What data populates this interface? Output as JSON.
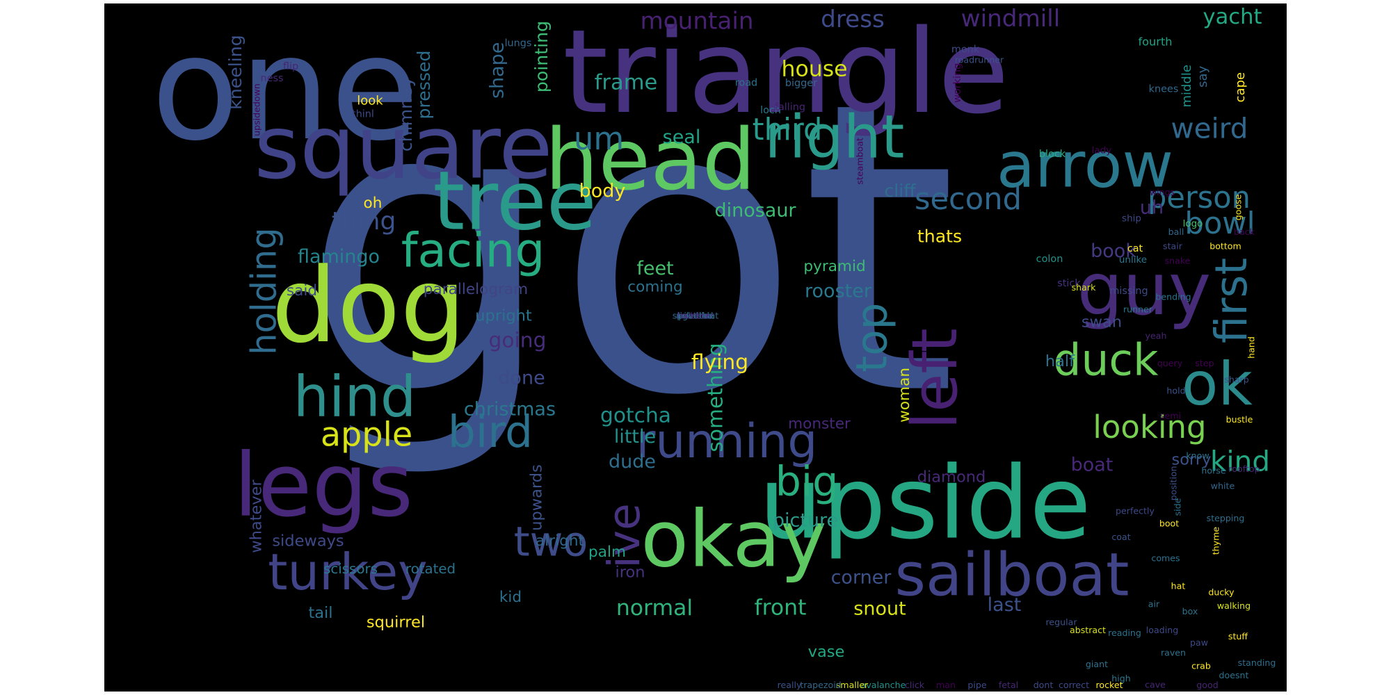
{
  "word_cloud": {
    "words": [
      {
        "text": "got",
        "color": "#3b518b"
      },
      {
        "text": "one",
        "color": "#3b518b"
      },
      {
        "text": "triangle",
        "color": "#46327e"
      },
      {
        "text": "square",
        "color": "#404387"
      },
      {
        "text": "head",
        "color": "#5ec962"
      },
      {
        "text": "tree",
        "color": "#2a9a8a"
      },
      {
        "text": "dog",
        "color": "#a0da39"
      },
      {
        "text": "legs",
        "color": "#482878"
      },
      {
        "text": "upside",
        "color": "#26a784"
      },
      {
        "text": "okay",
        "color": "#5ec962"
      },
      {
        "text": "sailboat",
        "color": "#414487"
      },
      {
        "text": "guy",
        "color": "#472c7a"
      },
      {
        "text": "arrow",
        "color": "#2a788e"
      },
      {
        "text": "right",
        "color": "#2a9a8a"
      },
      {
        "text": "ok",
        "color": "#2a8a8c"
      },
      {
        "text": "left",
        "color": "#482173"
      },
      {
        "text": "first",
        "color": "#2c728e"
      },
      {
        "text": "hind",
        "color": "#2e8f8c"
      },
      {
        "text": "running",
        "color": "#3e4a89"
      },
      {
        "text": "turkey",
        "color": "#414487"
      },
      {
        "text": "bird",
        "color": "#2c718e"
      },
      {
        "text": "duck",
        "color": "#6ccd5a"
      },
      {
        "text": "facing",
        "color": "#26ad81"
      },
      {
        "text": "holding",
        "color": "#2f6c8e"
      },
      {
        "text": "apple",
        "color": "#d8e219"
      },
      {
        "text": "ive",
        "color": "#46327e"
      },
      {
        "text": "two",
        "color": "#3e4c8a"
      },
      {
        "text": "big",
        "color": "#2ab07f"
      },
      {
        "text": "looking",
        "color": "#7ad151"
      },
      {
        "text": "kind",
        "color": "#23a983"
      },
      {
        "text": "second",
        "color": "#31688e"
      },
      {
        "text": "person",
        "color": "#2c738e"
      },
      {
        "text": "bowl",
        "color": "#2c728e"
      },
      {
        "text": "thing",
        "color": "#3b528b"
      },
      {
        "text": "top",
        "color": "#2a788e"
      },
      {
        "text": "um",
        "color": "#2c728e"
      },
      {
        "text": "third",
        "color": "#2a9a8a"
      },
      {
        "text": "weird",
        "color": "#31688e"
      },
      {
        "text": "mountain",
        "color": "#482173"
      },
      {
        "text": "dress",
        "color": "#3e4a89"
      },
      {
        "text": "windmill",
        "color": "#482878"
      },
      {
        "text": "yacht",
        "color": "#23a983"
      },
      {
        "text": "house",
        "color": "#d8e219"
      },
      {
        "text": "frame",
        "color": "#2a9a8a"
      },
      {
        "text": "shape",
        "color": "#31688e"
      },
      {
        "text": "pointing",
        "color": "#3dbc74"
      },
      {
        "text": "pressed",
        "color": "#2e6e8e"
      },
      {
        "text": "chimney",
        "color": "#3b528b"
      },
      {
        "text": "kneeling",
        "color": "#3b528b"
      },
      {
        "text": "seal",
        "color": "#20a386"
      },
      {
        "text": "body",
        "color": "#fde725"
      },
      {
        "text": "oh",
        "color": "#fde725"
      },
      {
        "text": "dinosaur",
        "color": "#3dbc74"
      },
      {
        "text": "cliff",
        "color": "#2e6e8e"
      },
      {
        "text": "book",
        "color": "#443983"
      },
      {
        "text": "uh",
        "color": "#472c7a"
      },
      {
        "text": "thats",
        "color": "#fde725"
      },
      {
        "text": "flamingo",
        "color": "#25848e"
      },
      {
        "text": "said",
        "color": "#3e4a89"
      },
      {
        "text": "parallelogram",
        "color": "#414487"
      },
      {
        "text": "pyramid",
        "color": "#3dbc74"
      },
      {
        "text": "rooster",
        "color": "#2a788e"
      },
      {
        "text": "feet",
        "color": "#46c06f"
      },
      {
        "text": "coming",
        "color": "#2c728e"
      },
      {
        "text": "something",
        "color": "#26ad81"
      },
      {
        "text": "going",
        "color": "#472c7a"
      },
      {
        "text": "flying",
        "color": "#fde725"
      },
      {
        "text": "done",
        "color": "#3e4a89"
      },
      {
        "text": "christmas",
        "color": "#2a788e"
      },
      {
        "text": "upright",
        "color": "#2c728e"
      },
      {
        "text": "swan",
        "color": "#3e4a89"
      },
      {
        "text": "half",
        "color": "#2c728e"
      },
      {
        "text": "woman",
        "color": "#d8e219"
      },
      {
        "text": "little",
        "color": "#21918c"
      },
      {
        "text": "dude",
        "color": "#2e6e8e"
      },
      {
        "text": "gotcha",
        "color": "#21918c"
      },
      {
        "text": "picture",
        "color": "#2a9a8a"
      },
      {
        "text": "diamond",
        "color": "#482878"
      },
      {
        "text": "boat",
        "color": "#482878"
      },
      {
        "text": "sorry",
        "color": "#3b528b"
      },
      {
        "text": "sideways",
        "color": "#3e4a89"
      },
      {
        "text": "upwards",
        "color": "#3b528b"
      },
      {
        "text": "alright",
        "color": "#31688e"
      },
      {
        "text": "palm",
        "color": "#20a386"
      },
      {
        "text": "iron",
        "color": "#46327e"
      },
      {
        "text": "kid",
        "color": "#2e6e8e"
      },
      {
        "text": "tail",
        "color": "#2c728e"
      },
      {
        "text": "squirrel",
        "color": "#fde725"
      },
      {
        "text": "normal",
        "color": "#2fb47c"
      },
      {
        "text": "front",
        "color": "#2fb47c"
      },
      {
        "text": "corner",
        "color": "#3b528b"
      },
      {
        "text": "snout",
        "color": "#d8e219"
      },
      {
        "text": "last",
        "color": "#3b528b"
      },
      {
        "text": "vase",
        "color": "#22a884"
      },
      {
        "text": "whatever",
        "color": "#3e4a89"
      },
      {
        "text": "scissors",
        "color": "#2a788e"
      },
      {
        "text": "rotated",
        "color": "#2c728e"
      },
      {
        "text": "monster",
        "color": "#482878"
      },
      {
        "text": "lungs",
        "color": "#31688e"
      },
      {
        "text": "flip",
        "color": "#482475"
      },
      {
        "text": "ness",
        "color": "#482878"
      },
      {
        "text": "look",
        "color": "#fde725"
      },
      {
        "text": "thinl",
        "color": "#3e4a89"
      },
      {
        "text": "upsidedown",
        "color": "#440154"
      },
      {
        "text": "bigger",
        "color": "#31688e"
      },
      {
        "text": "road",
        "color": "#2c728e"
      },
      {
        "text": "loch",
        "color": "#2a788e"
      },
      {
        "text": "falling",
        "color": "#482475"
      },
      {
        "text": "monk",
        "color": "#3e4a89"
      },
      {
        "text": "roadrunner",
        "color": "#3b528b"
      },
      {
        "text": "working",
        "color": "#440154"
      },
      {
        "text": "say",
        "color": "#31688e"
      },
      {
        "text": "middle",
        "color": "#21918c"
      },
      {
        "text": "cape",
        "color": "#fde725"
      },
      {
        "text": "fourth",
        "color": "#20a386"
      },
      {
        "text": "knees",
        "color": "#31688e"
      },
      {
        "text": "steamboat",
        "color": "#440154"
      },
      {
        "text": "ground",
        "color": "#3b528b"
      },
      {
        "text": "block",
        "color": "#26ad81"
      },
      {
        "text": "lady",
        "color": "#440154"
      },
      {
        "text": "wings",
        "color": "#440154"
      },
      {
        "text": "cat",
        "color": "#fde725"
      },
      {
        "text": "goose",
        "color": "#fde725"
      },
      {
        "text": "ship",
        "color": "#3e4a89"
      },
      {
        "text": "unlike",
        "color": "#2a788e"
      },
      {
        "text": "logo",
        "color": "#46c06f"
      },
      {
        "text": "colon",
        "color": "#21918c"
      },
      {
        "text": "missing",
        "color": "#3e4a89"
      },
      {
        "text": "stick",
        "color": "#46327e"
      },
      {
        "text": "shark",
        "color": "#d8e219"
      },
      {
        "text": "ball",
        "color": "#31688e"
      },
      {
        "text": "snake",
        "color": "#440154"
      },
      {
        "text": "bending",
        "color": "#2c728e"
      },
      {
        "text": "yeah",
        "color": "#482475"
      },
      {
        "text": "back",
        "color": "#440154"
      },
      {
        "text": "bottom",
        "color": "#fde725"
      },
      {
        "text": "stair",
        "color": "#3e4a89"
      },
      {
        "text": "runner",
        "color": "#2a788e"
      },
      {
        "text": "query",
        "color": "#440154"
      },
      {
        "text": "step",
        "color": "#440154"
      },
      {
        "text": "sharp",
        "color": "#3b528b"
      },
      {
        "text": "hold",
        "color": "#3b528b"
      },
      {
        "text": "hand",
        "color": "#fde725"
      },
      {
        "text": "bustle",
        "color": "#fde725"
      },
      {
        "text": "semi",
        "color": "#440154"
      },
      {
        "text": "know",
        "color": "#2c728e"
      },
      {
        "text": "rooftop",
        "color": "#482878"
      },
      {
        "text": "horse",
        "color": "#2c728e"
      },
      {
        "text": "position",
        "color": "#3b528b"
      },
      {
        "text": "side",
        "color": "#2c728e"
      },
      {
        "text": "white",
        "color": "#31688e"
      },
      {
        "text": "stepping",
        "color": "#2e6e8e"
      },
      {
        "text": "boot",
        "color": "#fde725"
      },
      {
        "text": "perfectly",
        "color": "#3e4a89"
      },
      {
        "text": "thyme",
        "color": "#fde725"
      },
      {
        "text": "coat",
        "color": "#3b528b"
      },
      {
        "text": "comes",
        "color": "#2c728e"
      },
      {
        "text": "hat",
        "color": "#fde725"
      },
      {
        "text": "ducky",
        "color": "#fde725"
      },
      {
        "text": "walking",
        "color": "#d8e219"
      },
      {
        "text": "air",
        "color": "#2c728e"
      },
      {
        "text": "box",
        "color": "#2c728e"
      },
      {
        "text": "loading",
        "color": "#3e4a89"
      },
      {
        "text": "reading",
        "color": "#2c728e"
      },
      {
        "text": "abstract",
        "color": "#d8e219"
      },
      {
        "text": "regular",
        "color": "#3b528b"
      },
      {
        "text": "stuff",
        "color": "#fde725"
      },
      {
        "text": "paw",
        "color": "#3e4a89"
      },
      {
        "text": "raven",
        "color": "#2c728e"
      },
      {
        "text": "crab",
        "color": "#fde725"
      },
      {
        "text": "giant",
        "color": "#2c728e"
      },
      {
        "text": "high",
        "color": "#2a788e"
      },
      {
        "text": "cave",
        "color": "#482878"
      },
      {
        "text": "good",
        "color": "#482475"
      },
      {
        "text": "doesnt",
        "color": "#2c728e"
      },
      {
        "text": "standing",
        "color": "#2e6e8e"
      },
      {
        "text": "rocket",
        "color": "#fde725"
      },
      {
        "text": "correct",
        "color": "#3e4a89"
      },
      {
        "text": "dont",
        "color": "#3e4a89"
      },
      {
        "text": "fetal",
        "color": "#482878"
      },
      {
        "text": "pipe",
        "color": "#3e4a89"
      },
      {
        "text": "man",
        "color": "#440154"
      },
      {
        "text": "click",
        "color": "#482878"
      },
      {
        "text": "avalanche",
        "color": "#21918c"
      },
      {
        "text": "smaller",
        "color": "#d8e219"
      },
      {
        "text": "trapezoid",
        "color": "#31688e"
      },
      {
        "text": "really",
        "color": "#3b528b"
      },
      {
        "text": "havethe",
        "color": "#2e6e8e"
      },
      {
        "text": "speedboat",
        "color": "#31688e"
      },
      {
        "text": "pikachu",
        "color": "#2c728e"
      },
      {
        "text": "rightside",
        "color": "#2c728e"
      },
      {
        "text": "rubber",
        "color": "#482878"
      },
      {
        "text": "snouted",
        "color": "#2c728e"
      },
      {
        "text": "hammer",
        "color": "#46327e"
      }
    ]
  }
}
